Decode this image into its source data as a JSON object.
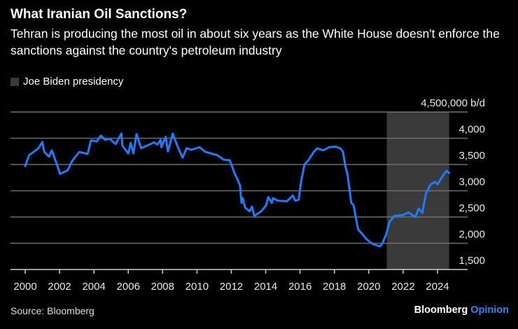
{
  "header": {
    "title": "What Iranian Oil Sanctions?",
    "subtitle": "Tehran is producing the most oil in about six years as the White House doesn't enforce the sanctions against the country's petroleum industry"
  },
  "footer": {
    "source": "Source: Bloomberg",
    "logo_main": "Bloomberg",
    "logo_accent": "Opinion"
  },
  "chart_data": {
    "type": "line",
    "title": "What Iranian Oil Sanctions?",
    "unit_label": "4,500,000 b/d",
    "ylim": [
      1500,
      4500
    ],
    "xlim": [
      1999.9,
      2025.7
    ],
    "y_ticks": [
      1500,
      2000,
      2500,
      3000,
      3500,
      4000,
      4500
    ],
    "y_tick_labels": [
      "1,500",
      "2,000",
      "2,500",
      "3,000",
      "3,500",
      "4,000",
      "4,500,000 b/d"
    ],
    "x_ticks": [
      2000,
      2002,
      2004,
      2006,
      2008,
      2010,
      2012,
      2014,
      2016,
      2018,
      2020,
      2022,
      2024
    ],
    "x_tick_labels": [
      "2000",
      "2002",
      "2004",
      "2006",
      "2008",
      "2010",
      "2012",
      "2014",
      "2016",
      "2018",
      "2020",
      "2022",
      "2024"
    ],
    "grid": true,
    "line_color": "#1f7bff",
    "shaded_region": {
      "label": "Joe Biden presidency",
      "start": 2021.05,
      "end": 2024.68,
      "color": "#3a3a3a"
    },
    "legend_placement": "top-left",
    "series": [
      {
        "x": [
          2000.0,
          2000.23,
          2000.5,
          2000.77,
          2001.0,
          2001.11,
          2001.39,
          2001.55,
          2001.86,
          2002.03,
          2002.47,
          2002.74,
          2003.15,
          2003.63,
          2003.83,
          2004.17,
          2004.41,
          2004.65,
          2004.92,
          2005.26,
          2005.6,
          2005.66,
          2006.0,
          2006.14,
          2006.3,
          2006.48,
          2006.75,
          2007.16,
          2007.5,
          2007.7,
          2007.88,
          2007.93,
          2008.18,
          2008.31,
          2008.59,
          2008.85,
          2009.16,
          2009.4,
          2009.67,
          2010.15,
          2010.49,
          2011.17,
          2011.57,
          2011.91,
          2012.18,
          2012.5,
          2012.59,
          2012.66,
          2012.8,
          2013.07,
          2013.2,
          2013.34,
          2013.74,
          2014.02,
          2014.15,
          2014.36,
          2014.43,
          2014.7,
          2015.24,
          2015.58,
          2015.72,
          2015.92,
          2016.06,
          2016.26,
          2016.46,
          2016.8,
          2017.0,
          2017.35,
          2017.69,
          2018.09,
          2018.37,
          2018.5,
          2018.63,
          2018.77,
          2018.98,
          2019.11,
          2019.38,
          2019.59,
          2019.86,
          2020.13,
          2020.27,
          2020.67,
          2020.81,
          2021.01,
          2021.22,
          2021.49,
          2022.03,
          2022.3,
          2022.71,
          2022.91,
          2023.12,
          2023.32,
          2023.6,
          2023.87,
          2024.0,
          2024.34,
          2024.54,
          2024.68
        ],
        "y": [
          3470,
          3680,
          3740,
          3810,
          3930,
          3740,
          3650,
          3770,
          3490,
          3320,
          3390,
          3570,
          3740,
          3700,
          3960,
          3940,
          4050,
          3970,
          3990,
          3890,
          4090,
          3860,
          3710,
          3910,
          3710,
          4080,
          3810,
          3870,
          3920,
          3880,
          3970,
          3830,
          4030,
          3750,
          4090,
          3860,
          3630,
          3810,
          3780,
          3830,
          3740,
          3680,
          3590,
          3580,
          3340,
          3110,
          2770,
          2860,
          2680,
          2610,
          2700,
          2520,
          2610,
          2720,
          2880,
          2770,
          2860,
          2810,
          2800,
          2910,
          2810,
          2830,
          3170,
          3500,
          3570,
          3740,
          3810,
          3770,
          3830,
          3840,
          3800,
          3740,
          3480,
          3300,
          2770,
          2730,
          2260,
          2190,
          2080,
          2010,
          1980,
          1940,
          2010,
          2170,
          2410,
          2520,
          2540,
          2590,
          2500,
          2660,
          2580,
          2940,
          3120,
          3170,
          3120,
          3300,
          3380,
          3340
        ]
      }
    ]
  }
}
